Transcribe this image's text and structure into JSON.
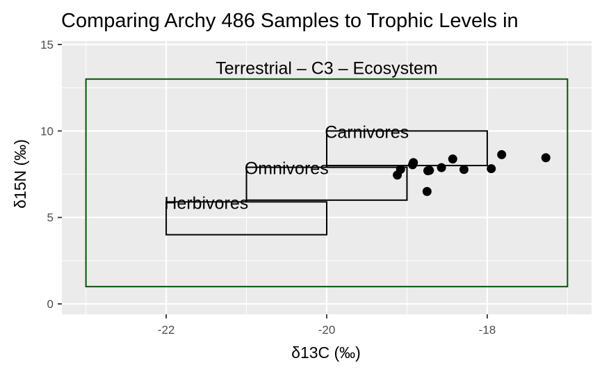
{
  "chart_data": {
    "type": "scatter",
    "title": "Comparing Archy 486 Samples to Trophic Levels in",
    "xlabel": "δ13C (‰)",
    "ylabel": "δ15N (‰)",
    "xlim": [
      -23.3,
      -16.7
    ],
    "ylim": [
      -0.6,
      15.2
    ],
    "x_ticks": [
      -22,
      -20,
      -18
    ],
    "y_ticks": [
      0,
      5,
      10,
      15
    ],
    "grid": true,
    "legend": "none",
    "points": [
      {
        "x": -19.12,
        "y": 7.45
      },
      {
        "x": -19.08,
        "y": 7.78
      },
      {
        "x": -18.93,
        "y": 8.05
      },
      {
        "x": -18.92,
        "y": 8.17
      },
      {
        "x": -18.75,
        "y": 6.5
      },
      {
        "x": -18.74,
        "y": 7.7
      },
      {
        "x": -18.72,
        "y": 7.72
      },
      {
        "x": -18.57,
        "y": 7.88
      },
      {
        "x": -18.43,
        "y": 8.38
      },
      {
        "x": -18.29,
        "y": 7.77
      },
      {
        "x": -17.95,
        "y": 7.82
      },
      {
        "x": -17.82,
        "y": 8.63
      },
      {
        "x": -17.27,
        "y": 8.45
      }
    ],
    "regions": [
      {
        "label": "Terrestrial – C3 – Ecosystem",
        "xmin": -23,
        "xmax": -17,
        "ymin": 1,
        "ymax": 13,
        "color": "#005500",
        "label_x": -20,
        "label_y": 13.3
      },
      {
        "label": "Carnivores",
        "xmin": -20,
        "xmax": -18,
        "ymin": 8,
        "ymax": 10,
        "color": "#000000",
        "label_x": -19.5,
        "label_y": 9.6
      },
      {
        "label": "Omnivores",
        "xmin": -21,
        "xmax": -19,
        "ymin": 6,
        "ymax": 7.9,
        "color": "#000000",
        "label_x": -20.5,
        "label_y": 7.5
      },
      {
        "label": "Herbivores",
        "xmin": -22,
        "xmax": -20,
        "ymin": 4,
        "ymax": 5.9,
        "color": "#000000",
        "label_x": -21.5,
        "label_y": 5.5
      }
    ],
    "colors": {
      "panel_background": "#ebebeb",
      "grid_line": "#ffffff",
      "point": "#000000",
      "ecosystem": "#005500"
    }
  }
}
